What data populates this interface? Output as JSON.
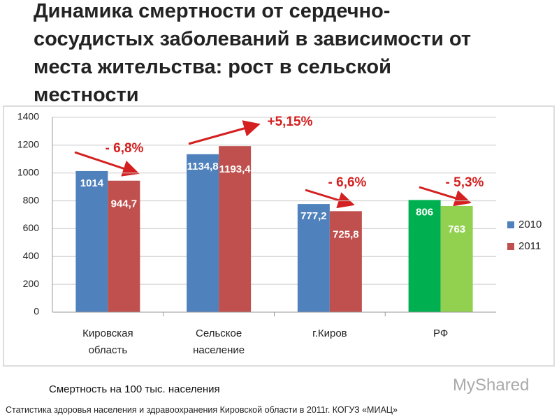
{
  "chart_data": {
    "type": "bar",
    "title": "Динамика смертности от сердечно-сосудистых заболеваний в зависимости от места жительства: рост в сельской местности",
    "categories": [
      "Кировская область",
      "Сельское население",
      "г.Киров",
      "РФ"
    ],
    "series": [
      {
        "name": "2010",
        "color": "#4f81bd",
        "point_colors": [
          "#4f81bd",
          "#4f81bd",
          "#4f81bd",
          "#00b050"
        ],
        "values": [
          1014,
          1134.8,
          777.2,
          806
        ],
        "value_labels": [
          "1014",
          "1134,8",
          "777,2",
          "806"
        ]
      },
      {
        "name": "2011",
        "color": "#c0504d",
        "point_colors": [
          "#c0504d",
          "#c0504d",
          "#c0504d",
          "#92d050"
        ],
        "values": [
          944.7,
          1193.4,
          725.8,
          763
        ],
        "value_labels": [
          "944,7",
          "1193,4",
          "725,8",
          "763"
        ]
      }
    ],
    "annotations": [
      "- 6,8%",
      "+5,15%",
      "- 6,6%",
      "- 5,3%"
    ],
    "ylim": [
      0,
      1400
    ],
    "yticks": [
      0,
      200,
      400,
      600,
      800,
      1000,
      1200,
      1400
    ],
    "grid": true,
    "legend": "right",
    "note": "Смертность на 100 тыс. населения",
    "watermark": "MyShared",
    "footer": "Статистика здоровья населения и здравоохранения Кировской области в 2011г. КОГУЗ «МИАЦ»"
  }
}
